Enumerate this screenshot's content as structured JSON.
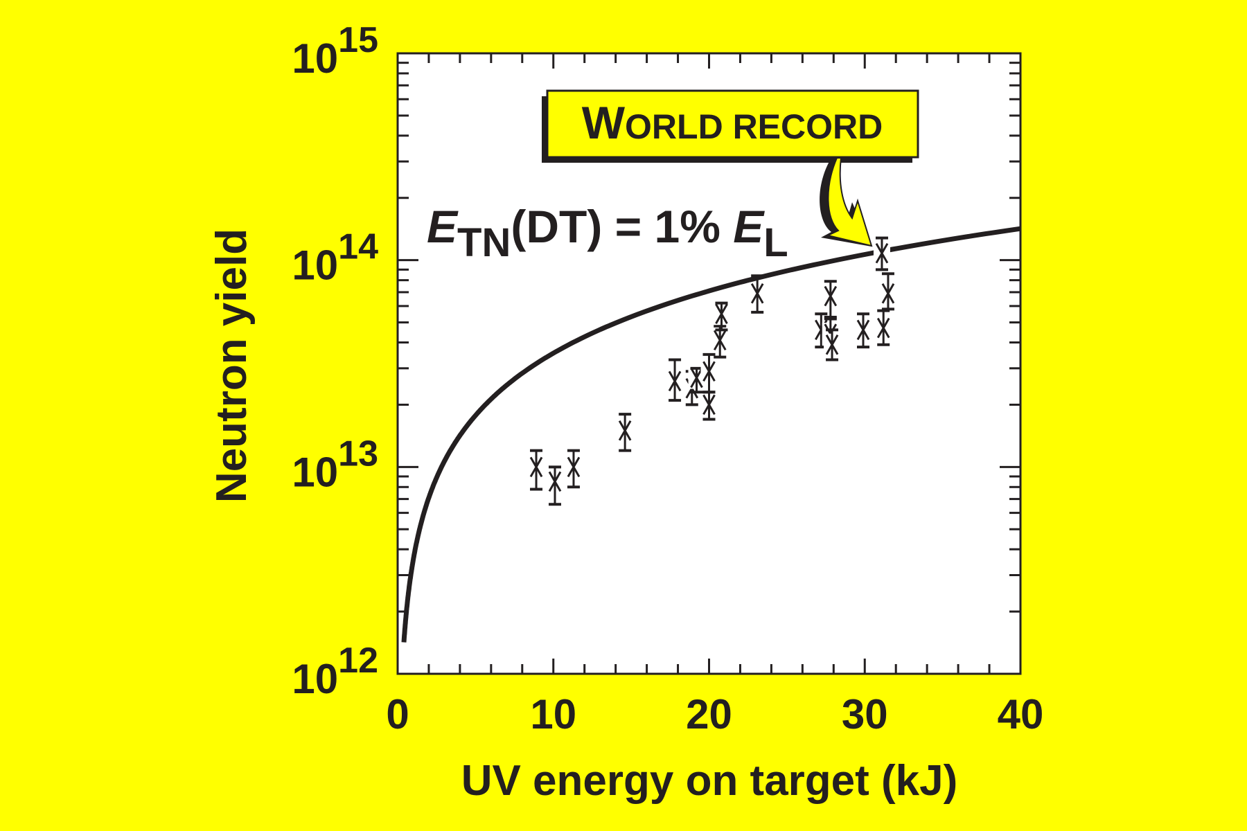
{
  "chart_data": {
    "type": "scatter",
    "xlabel": "UV energy on target (kJ)",
    "ylabel": "Neutron yield",
    "xlim": [
      0,
      40
    ],
    "ylim": [
      1000000000000.0,
      1000000000000000.0
    ],
    "yscale": "log",
    "grid": false,
    "x_ticks": [
      "0",
      "10",
      "20",
      "30",
      "40"
    ],
    "y_ticks": [
      {
        "base": "10",
        "exp": "12"
      },
      {
        "base": "10",
        "exp": "13"
      },
      {
        "base": "10",
        "exp": "14"
      },
      {
        "base": "10",
        "exp": "15"
      }
    ],
    "background_color": "#ffff00",
    "ink_color": "#231f20",
    "points": [
      {
        "x": 8.9,
        "y": 10000000000000.0,
        "lo": 7800000000000.0,
        "hi": 12000000000000.0
      },
      {
        "x": 10.1,
        "y": 8500000000000.0,
        "lo": 6600000000000.0,
        "hi": 10000000000000.0
      },
      {
        "x": 11.3,
        "y": 10000000000000.0,
        "lo": 8000000000000.0,
        "hi": 12000000000000.0
      },
      {
        "x": 14.6,
        "y": 15000000000000.0,
        "lo": 12000000000000.0,
        "hi": 18000000000000.0
      },
      {
        "x": 17.8,
        "y": 26000000000000.0,
        "lo": 21000000000000.0,
        "hi": 33000000000000.0
      },
      {
        "x": 18.9,
        "y": 24000000000000.0,
        "lo": 20000000000000.0,
        "hi": 29000000000000.0
      },
      {
        "x": 19.2,
        "y": 27000000000000.0,
        "lo": 23000000000000.0,
        "hi": 30000000000000.0
      },
      {
        "x": 20.0,
        "y": 29000000000000.0,
        "lo": 23000000000000.0,
        "hi": 35000000000000.0
      },
      {
        "x": 20.0,
        "y": 20000000000000.0,
        "lo": 17000000000000.0,
        "hi": 23000000000000.0
      },
      {
        "x": 20.7,
        "y": 41000000000000.0,
        "lo": 34000000000000.0,
        "hi": 48000000000000.0
      },
      {
        "x": 20.8,
        "y": 55000000000000.0,
        "lo": 46000000000000.0,
        "hi": 62000000000000.0
      },
      {
        "x": 23.1,
        "y": 69000000000000.0,
        "lo": 56000000000000.0,
        "hi": 84000000000000.0
      },
      {
        "x": 27.2,
        "y": 46000000000000.0,
        "lo": 38000000000000.0,
        "hi": 55000000000000.0
      },
      {
        "x": 27.8,
        "y": 67000000000000.0,
        "lo": 53000000000000.0,
        "hi": 79000000000000.0
      },
      {
        "x": 27.8,
        "y": 44000000000000.0,
        "lo": 38000000000000.0,
        "hi": 52000000000000.0
      },
      {
        "x": 27.9,
        "y": 39000000000000.0,
        "lo": 33000000000000.0,
        "hi": 46000000000000.0
      },
      {
        "x": 29.9,
        "y": 46000000000000.0,
        "lo": 38000000000000.0,
        "hi": 55000000000000.0
      },
      {
        "x": 31.1,
        "y": 108000000000000.0,
        "lo": 90000000000000.0,
        "hi": 128000000000000.0
      },
      {
        "x": 31.5,
        "y": 69000000000000.0,
        "lo": 58000000000000.0,
        "hi": 86000000000000.0
      },
      {
        "x": 31.2,
        "y": 47000000000000.0,
        "lo": 39000000000000.0,
        "hi": 57000000000000.0
      }
    ],
    "curve": {
      "formula": {
        "E": "E",
        "sub": "TN",
        "rest": "(DT) = 1% ",
        "E2": "E",
        "sub2": "L"
      },
      "coefficient": 3550000000000.0,
      "x_range": [
        0.4,
        40
      ]
    },
    "annotation": {
      "first": "W",
      "rest": "ORLD RECORD",
      "box_color": "#ffff00",
      "target_x": 31.1,
      "target_y": 108000000000000.0
    }
  }
}
